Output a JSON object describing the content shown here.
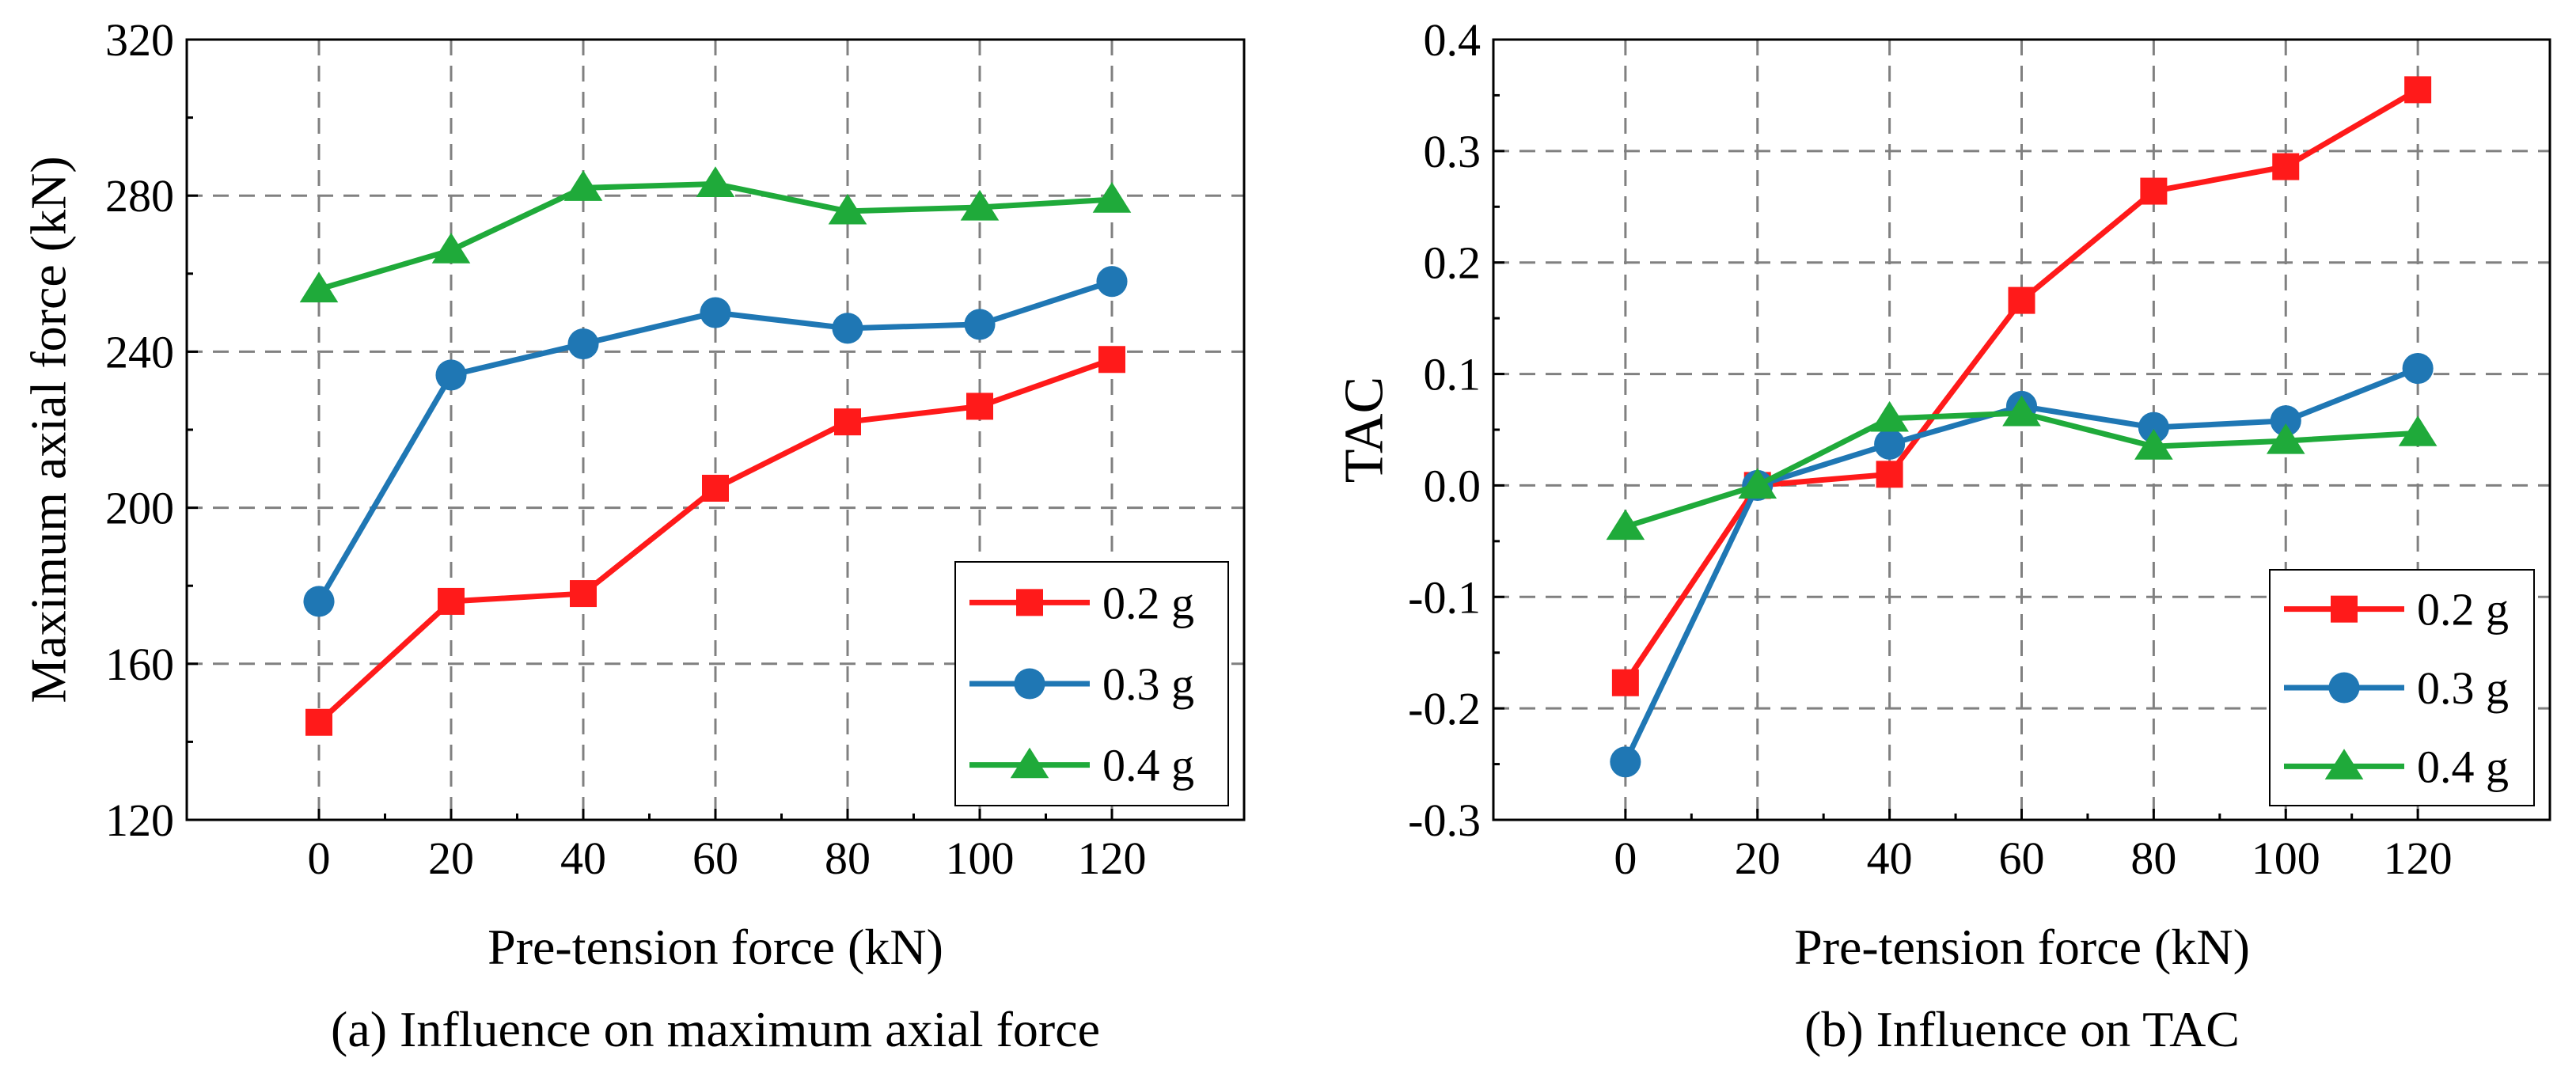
{
  "chart_data": [
    {
      "type": "line",
      "title": "",
      "caption": "(a) Influence on maximum axial force",
      "xlabel": "Pre-tension force (kN)",
      "ylabel": "Maximum axial force (kN)",
      "xlim": [
        -20,
        140
      ],
      "ylim": [
        120,
        320
      ],
      "xticks": [
        0,
        20,
        40,
        60,
        80,
        100,
        120
      ],
      "yticks": [
        120,
        160,
        200,
        240,
        280,
        320
      ],
      "xtick_labels": [
        "0",
        "20",
        "40",
        "60",
        "80",
        "100",
        "120"
      ],
      "ytick_labels": [
        "120",
        "160",
        "200",
        "240",
        "280",
        "320"
      ],
      "grid": true,
      "legend_position": "bottom-right",
      "x": [
        0,
        20,
        40,
        60,
        80,
        100,
        120
      ],
      "series": [
        {
          "name": "0.2 g",
          "color": "#ff1a1a",
          "marker": "square",
          "values": [
            145,
            176,
            178,
            205,
            222,
            226,
            238
          ]
        },
        {
          "name": "0.3 g",
          "color": "#1f77b4",
          "marker": "circle",
          "values": [
            176,
            234,
            242,
            250,
            246,
            247,
            258
          ]
        },
        {
          "name": "0.4 g",
          "color": "#1faa3a",
          "marker": "triangle",
          "values": [
            256,
            266,
            282,
            283,
            276,
            277,
            279
          ]
        }
      ]
    },
    {
      "type": "line",
      "title": "",
      "caption": "(b) Influence on TAC",
      "xlabel": "Pre-tension force (kN)",
      "ylabel": "TAC",
      "xlim": [
        -20,
        140
      ],
      "ylim": [
        -0.3,
        0.4
      ],
      "xticks": [
        0,
        20,
        40,
        60,
        80,
        100,
        120
      ],
      "yticks": [
        -0.3,
        -0.2,
        -0.1,
        0.0,
        0.1,
        0.2,
        0.3,
        0.4
      ],
      "xtick_labels": [
        "0",
        "20",
        "40",
        "60",
        "80",
        "100",
        "120"
      ],
      "ytick_labels": [
        "-0.3",
        "-0.2",
        "-0.1",
        "0.0",
        "0.1",
        "0.2",
        "0.3",
        "0.4"
      ],
      "grid": true,
      "legend_position": "bottom-right",
      "x": [
        0,
        20,
        40,
        60,
        80,
        100,
        120
      ],
      "series": [
        {
          "name": "0.2 g",
          "color": "#ff1a1a",
          "marker": "square",
          "values": [
            -0.177,
            0.0,
            0.01,
            0.166,
            0.264,
            0.286,
            0.355
          ]
        },
        {
          "name": "0.3 g",
          "color": "#1f77b4",
          "marker": "circle",
          "values": [
            -0.248,
            0.0,
            0.037,
            0.071,
            0.052,
            0.058,
            0.105
          ]
        },
        {
          "name": "0.4 g",
          "color": "#1faa3a",
          "marker": "triangle",
          "values": [
            -0.037,
            0.0,
            0.06,
            0.065,
            0.035,
            0.04,
            0.047
          ]
        }
      ]
    }
  ]
}
